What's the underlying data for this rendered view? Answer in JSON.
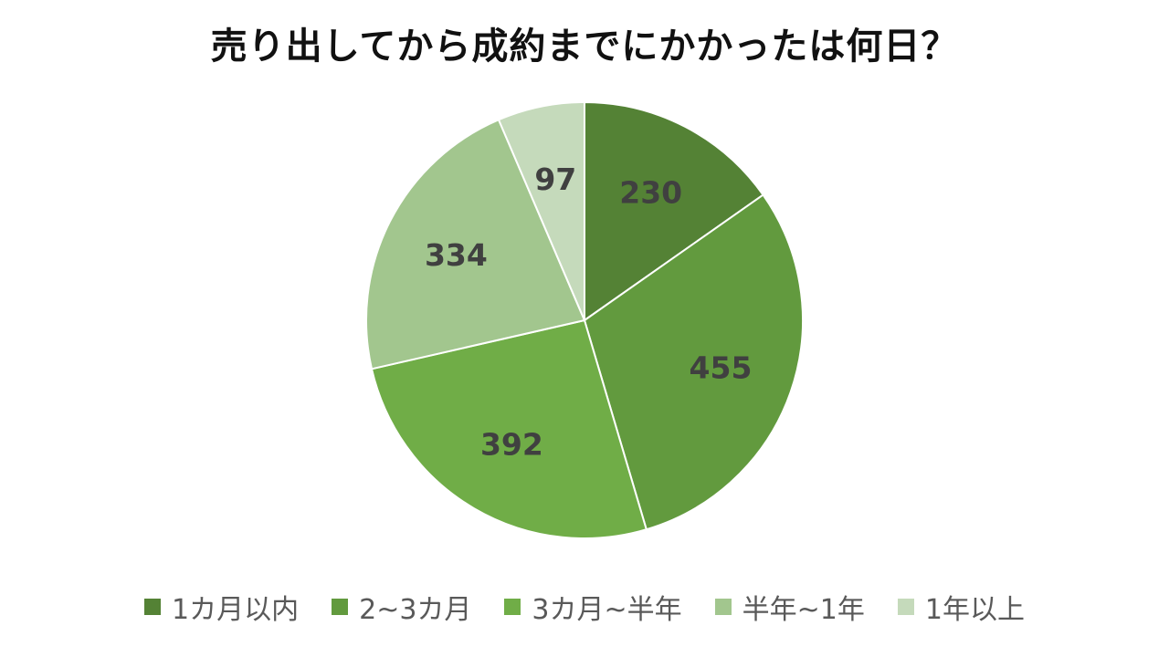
{
  "chart_data": {
    "type": "pie",
    "title": "売り出してから成約までにかかったは何日？",
    "categories": [
      "1カ月以内",
      "2~3カ月",
      "3カ月~半年",
      "半年~1年",
      "1年以上"
    ],
    "values": [
      230,
      455,
      392,
      334,
      97
    ],
    "colors": [
      "#548235",
      "#629A3E",
      "#70AD47",
      "#A2C68E",
      "#C5DABB"
    ],
    "start_angle": "12 o'clock",
    "direction": "clockwise",
    "data_labels": "values inside slices",
    "legend_position": "bottom"
  }
}
